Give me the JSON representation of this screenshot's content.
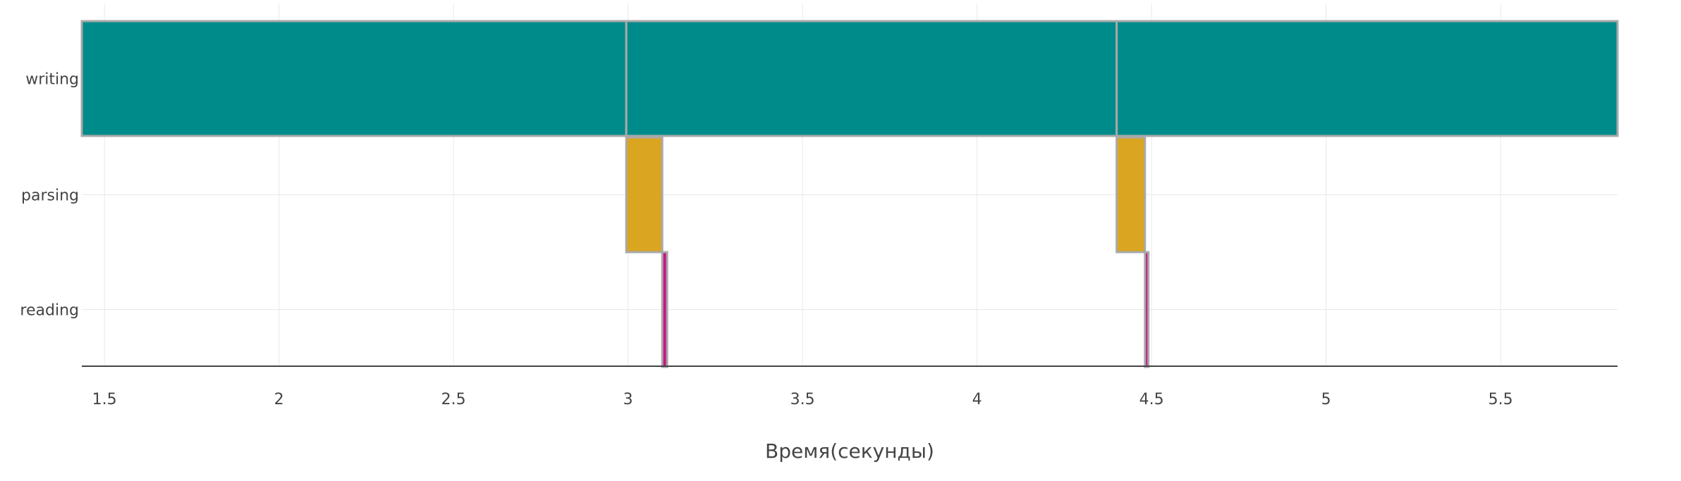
{
  "chart_data": {
    "type": "gantt",
    "title": "",
    "xlabel": "Время(секунды)",
    "ylabel": "",
    "xlim": [
      1.435,
      5.835
    ],
    "x_ticks": [
      1.5,
      2,
      2.5,
      3,
      3.5,
      4,
      4.5,
      5,
      5.5
    ],
    "x_tick_labels": [
      "1.5",
      "2",
      "2.5",
      "3",
      "3.5",
      "4",
      "4.5",
      "5",
      "5.5"
    ],
    "categories": [
      "writing",
      "parsing",
      "reading"
    ],
    "grid": true,
    "legend": "none",
    "colors": {
      "writing": "#008b8b",
      "parsing": "#daa520",
      "reading": "#c71585",
      "outline": "#a9a9a9",
      "grid": "#e8e8e8",
      "axis": "#444444"
    },
    "tasks": [
      {
        "category": "writing",
        "start": 1.435,
        "end": 2.995
      },
      {
        "category": "writing",
        "start": 2.995,
        "end": 4.4
      },
      {
        "category": "writing",
        "start": 4.4,
        "end": 5.835
      },
      {
        "category": "parsing",
        "start": 2.995,
        "end": 3.098
      },
      {
        "category": "parsing",
        "start": 4.4,
        "end": 4.481
      },
      {
        "category": "reading",
        "start": 3.098,
        "end": 3.112
      },
      {
        "category": "reading",
        "start": 4.481,
        "end": 4.491
      }
    ]
  }
}
